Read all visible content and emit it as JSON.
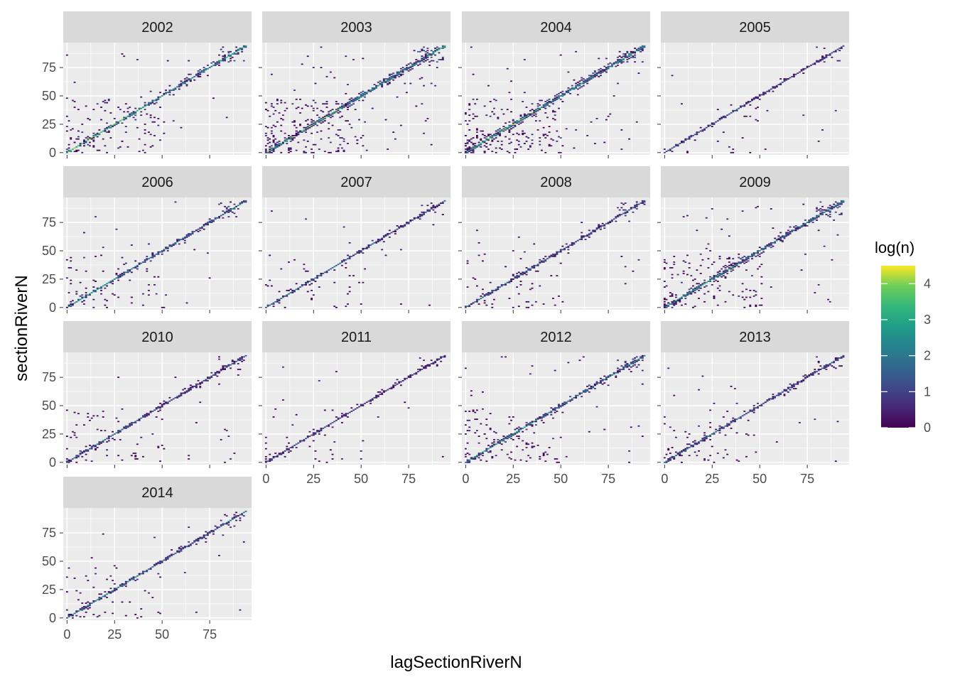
{
  "chart_data": {
    "type": "heatmap",
    "facet_by": "year",
    "facets": [
      "2002",
      "2003",
      "2004",
      "2005",
      "2006",
      "2007",
      "2008",
      "2009",
      "2010",
      "2011",
      "2012",
      "2013",
      "2014"
    ],
    "xlabel": "lagSectionRiverN",
    "ylabel": "sectionRiverN",
    "xlim": [
      -2,
      97
    ],
    "ylim": [
      -2,
      97
    ],
    "x_ticks": [
      0,
      25,
      50,
      75
    ],
    "y_ticks": [
      0,
      25,
      50,
      75
    ],
    "fill": {
      "name": "log(n)",
      "range": [
        0,
        4.5
      ],
      "breaks": [
        0,
        1,
        2,
        3,
        4
      ],
      "palette": "viridis"
    },
    "density": {
      "2002": {
        "diag": 4.2,
        "scatter": 0.55,
        "max": 3.0
      },
      "2003": {
        "diag": 4.3,
        "scatter": 1.0,
        "max": 3.2
      },
      "2004": {
        "diag": 4.4,
        "scatter": 1.0,
        "max": 3.4
      },
      "2005": {
        "diag": 1.6,
        "scatter": 0.12,
        "max": 1.6
      },
      "2006": {
        "diag": 3.0,
        "scatter": 0.35,
        "max": 2.4
      },
      "2007": {
        "diag": 2.2,
        "scatter": 0.25,
        "max": 2.0
      },
      "2008": {
        "diag": 2.2,
        "scatter": 0.3,
        "max": 1.9
      },
      "2009": {
        "diag": 3.6,
        "scatter": 0.75,
        "max": 2.7
      },
      "2010": {
        "diag": 2.0,
        "scatter": 0.35,
        "max": 1.8
      },
      "2011": {
        "diag": 1.4,
        "scatter": 0.18,
        "max": 1.6
      },
      "2012": {
        "diag": 3.2,
        "scatter": 0.6,
        "max": 2.6
      },
      "2013": {
        "diag": 2.2,
        "scatter": 0.3,
        "max": 1.9
      },
      "2014": {
        "diag": 2.6,
        "scatter": 0.3,
        "max": 2.0
      }
    },
    "grid": true,
    "legend_position": "right"
  }
}
